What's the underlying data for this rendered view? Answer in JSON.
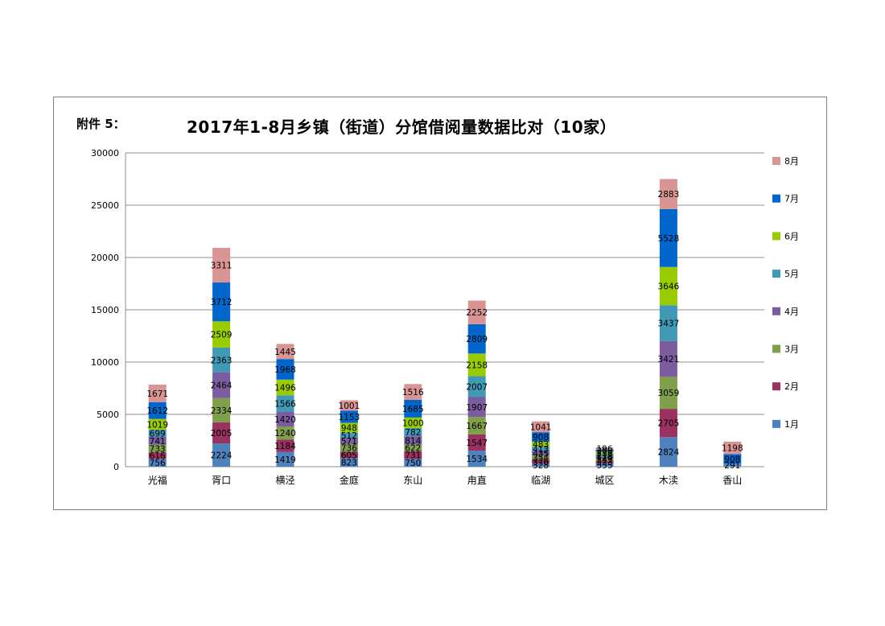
{
  "header": {
    "attachment": "附件 5：",
    "title": "2017年1-8月乡镇（街道）分馆借阅量数据比对（10家）"
  },
  "chart_data": {
    "type": "bar",
    "stacked": true,
    "title": "2017年1-8月乡镇（街道）分馆借阅量数据比对（10家）",
    "categories": [
      "光福",
      "胥口",
      "横泾",
      "金庭",
      "东山",
      "甪直",
      "临湖",
      "城区",
      "木渎",
      "香山"
    ],
    "ylim": [
      0,
      30000
    ],
    "yticks": [
      0,
      5000,
      10000,
      15000,
      20000,
      25000,
      30000
    ],
    "grid": true,
    "legend_position": "right",
    "series": [
      {
        "name": "1月",
        "color": "#4f81bd",
        "values": [
          756,
          2224,
          1419,
          823,
          750,
          1534,
          328,
          335,
          2824,
          291
        ]
      },
      {
        "name": "2月",
        "color": "#9b3160",
        "values": [
          616,
          2005,
          1184,
          605,
          731,
          1547,
          376,
          223,
          2705,
          0
        ]
      },
      {
        "name": "3月",
        "color": "#7f9f4a",
        "values": [
          733,
          2334,
          1240,
          736,
          622,
          1667,
          354,
          249,
          3059,
          0
        ]
      },
      {
        "name": "4月",
        "color": "#7b5c9e",
        "values": [
          741,
          2464,
          1420,
          571,
          814,
          1907,
          435,
          170,
          3421,
          0
        ]
      },
      {
        "name": "5月",
        "color": "#4199b6",
        "values": [
          699,
          2363,
          1566,
          512,
          782,
          2007,
          413,
          218,
          3437,
          0
        ]
      },
      {
        "name": "6月",
        "color": "#99cc00",
        "values": [
          1019,
          2509,
          1496,
          948,
          1000,
          2158,
          483,
          236,
          3646,
          0
        ]
      },
      {
        "name": "7月",
        "color": "#0066cc",
        "values": [
          1612,
          3712,
          1968,
          1153,
          1685,
          2809,
          908,
          208,
          5528,
          908
        ]
      },
      {
        "name": "8月",
        "color": "#d99594",
        "values": [
          1671,
          3311,
          1445,
          1001,
          1516,
          2252,
          1041,
          196,
          2883,
          1198
        ]
      }
    ],
    "data_labels": [
      [
        "756",
        "2224",
        "1419",
        "823",
        "750",
        "1534",
        "328",
        "335",
        "2824",
        "291"
      ],
      [
        "616",
        "2005",
        "1184",
        "605",
        "731",
        "1547",
        "376",
        "223",
        "2705",
        ""
      ],
      [
        "733",
        "2334",
        "1240",
        "736",
        "622",
        "1667",
        "354",
        "249",
        "3059",
        ""
      ],
      [
        "741",
        "2464",
        "1420",
        "571",
        "814",
        "1907",
        "435",
        "170",
        "3421",
        ""
      ],
      [
        "699",
        "2363",
        "1566",
        "512",
        "782",
        "2007",
        "413",
        "218",
        "3437",
        ""
      ],
      [
        "1019",
        "2509",
        "1496",
        "948",
        "1000",
        "2158",
        "483",
        "236",
        "3646",
        ""
      ],
      [
        "1612",
        "3712",
        "1968",
        "1153",
        "1685",
        "2809",
        "908",
        "208",
        "5528",
        "908"
      ],
      [
        "1671",
        "3311",
        "1445",
        "1001",
        "1516",
        "2252",
        "1041",
        "196",
        "2883",
        "1198"
      ]
    ]
  }
}
